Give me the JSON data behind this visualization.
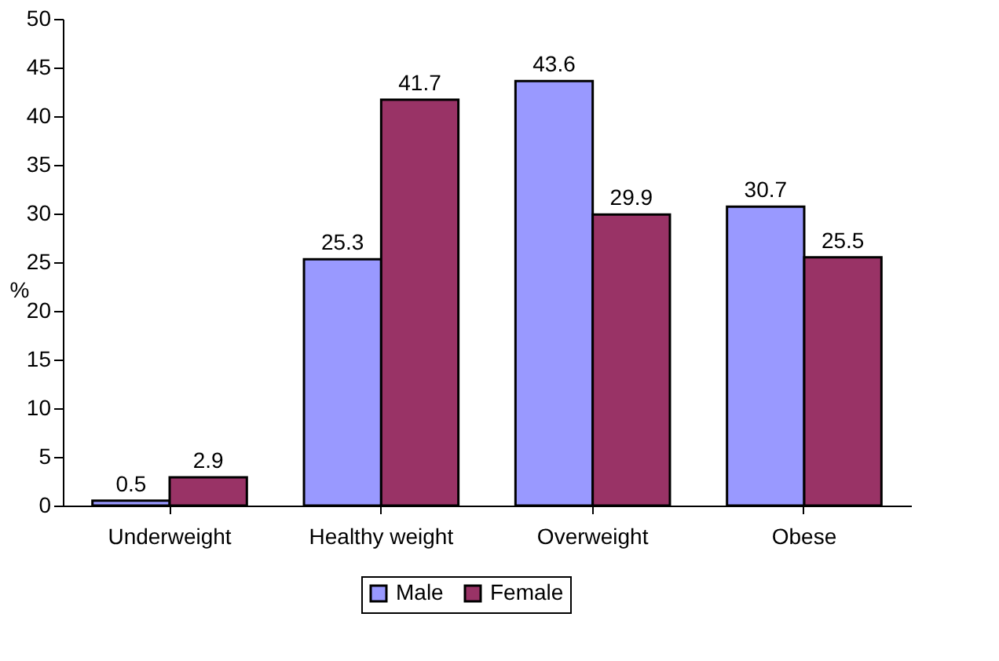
{
  "chart_data": {
    "type": "bar",
    "ylabel": "%",
    "categories": [
      "Underweight",
      "Healthy weight",
      "Overweight",
      "Obese"
    ],
    "series": [
      {
        "name": "Male",
        "color": "#9999ff",
        "values": [
          0.5,
          25.3,
          43.6,
          30.7
        ]
      },
      {
        "name": "Female",
        "color": "#993366",
        "values": [
          2.9,
          41.7,
          29.9,
          25.5
        ]
      }
    ],
    "ylim": [
      0,
      50
    ],
    "yticks": [
      0,
      5,
      10,
      15,
      20,
      25,
      30,
      35,
      40,
      45,
      50
    ],
    "grid": false,
    "legend": "bottom",
    "data_labels": true
  }
}
